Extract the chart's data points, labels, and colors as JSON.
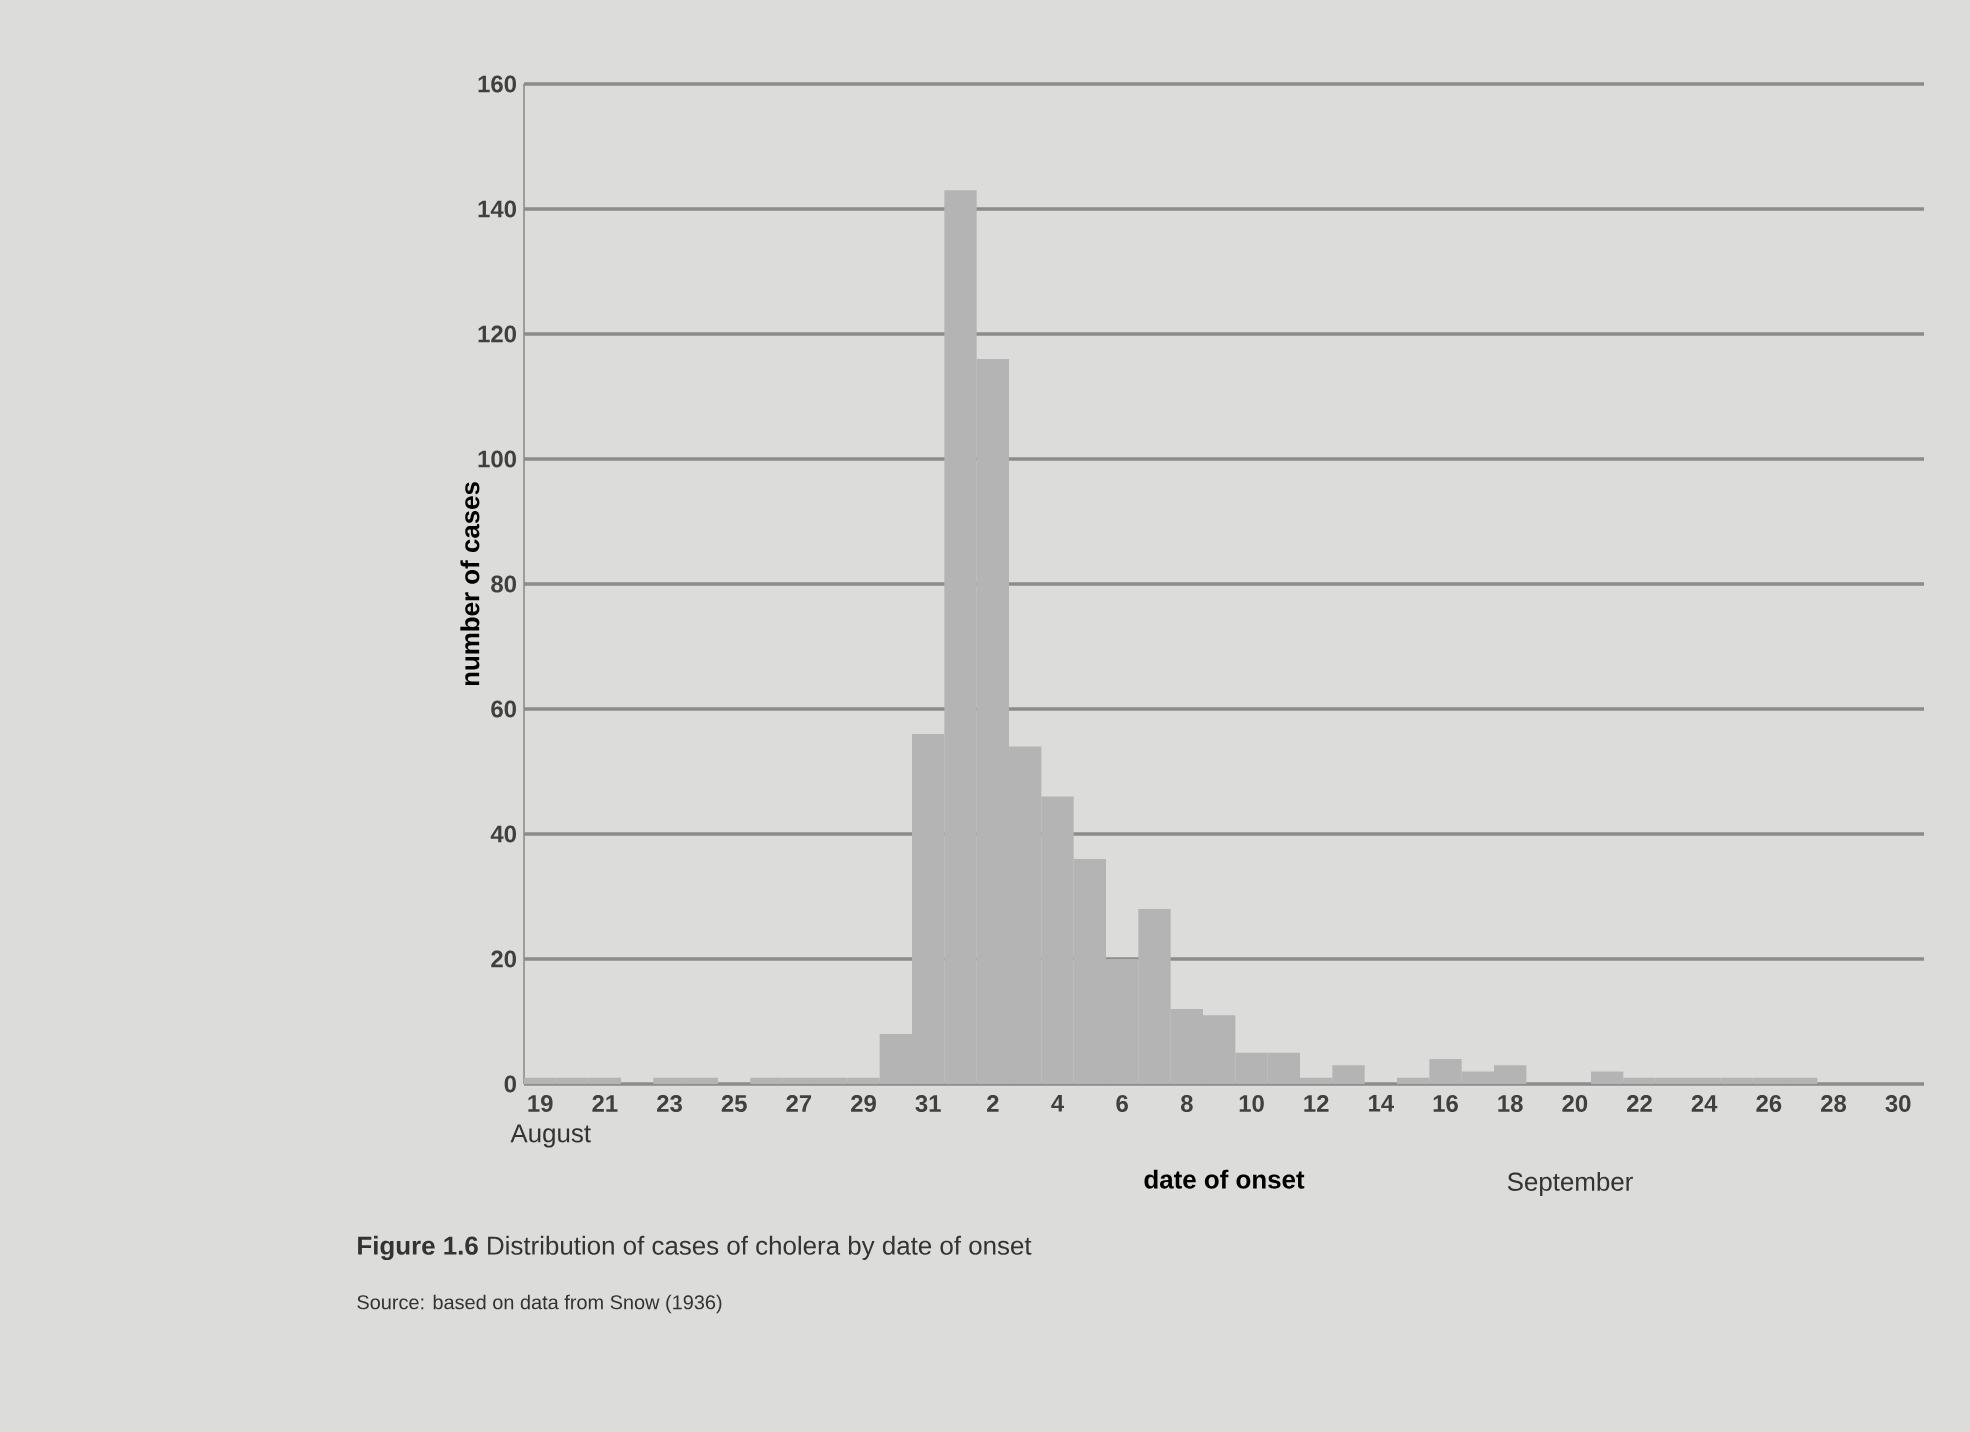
{
  "chart_data": {
    "type": "bar",
    "xlabel": "date of onset",
    "ylabel": "number of cases",
    "categories": [
      "19",
      null,
      "21",
      null,
      "23",
      null,
      "25",
      null,
      "27",
      null,
      "29",
      null,
      "31",
      null,
      "2",
      null,
      "4",
      null,
      "6",
      null,
      "8",
      null,
      "10",
      null,
      "12",
      null,
      "14",
      null,
      "16",
      null,
      "18",
      null,
      "20",
      null,
      "22",
      null,
      "24",
      null,
      "26",
      null,
      "28",
      null,
      "30"
    ],
    "values": [
      1,
      1,
      1,
      0,
      1,
      1,
      0,
      1,
      1,
      1,
      1,
      8,
      56,
      143,
      116,
      54,
      46,
      36,
      20,
      28,
      12,
      11,
      5,
      5,
      1,
      3,
      0,
      1,
      4,
      2,
      3,
      0,
      0,
      2,
      1,
      1,
      1,
      1,
      1,
      1,
      0,
      0,
      0
    ],
    "color": "#b4b4b4",
    "ylim": [
      0,
      160
    ],
    "yticks": [
      0,
      20,
      40,
      60,
      80,
      100,
      120,
      140,
      160
    ],
    "grid": "y",
    "annotations": [
      "August",
      "September",
      "**Figure 1.6** Distribution of cases of cholera by date of onset",
      "Source: based on data from Snow (1936)"
    ]
  }
}
